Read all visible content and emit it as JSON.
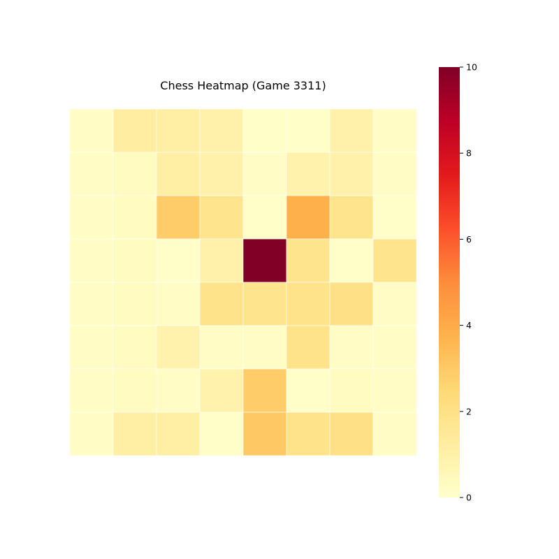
{
  "chart_data": {
    "type": "heatmap",
    "title": "Chess Heatmap (Game 3311)",
    "xlabel": "",
    "ylabel": "",
    "rows": 8,
    "cols": 8,
    "values": [
      [
        0.2,
        1.2,
        1.1,
        1.0,
        0.1,
        0.1,
        1.0,
        0.2
      ],
      [
        0.2,
        0.3,
        1.1,
        1.0,
        0.2,
        0.9,
        1.0,
        0.2
      ],
      [
        0.2,
        0.3,
        2.9,
        1.8,
        0.1,
        3.8,
        1.8,
        0.1
      ],
      [
        0.2,
        0.3,
        0.1,
        1.0,
        10.0,
        1.8,
        0.1,
        1.8
      ],
      [
        0.2,
        0.3,
        0.2,
        1.9,
        1.8,
        1.9,
        2.0,
        0.2
      ],
      [
        0.2,
        0.3,
        0.9,
        0.2,
        0.2,
        1.9,
        0.2,
        0.2
      ],
      [
        0.2,
        0.3,
        0.2,
        0.9,
        2.9,
        0.1,
        0.3,
        0.2
      ],
      [
        0.2,
        1.1,
        1.1,
        0.1,
        3.0,
        1.9,
        2.0,
        0.2
      ]
    ],
    "colormap": "YlOrRd",
    "vmin": 0,
    "vmax": 10,
    "colorbar_ticks": [
      0,
      2,
      4,
      6,
      8,
      10
    ],
    "grid": false,
    "cell_border_color": "#ffffff",
    "legend_placement": "right"
  }
}
